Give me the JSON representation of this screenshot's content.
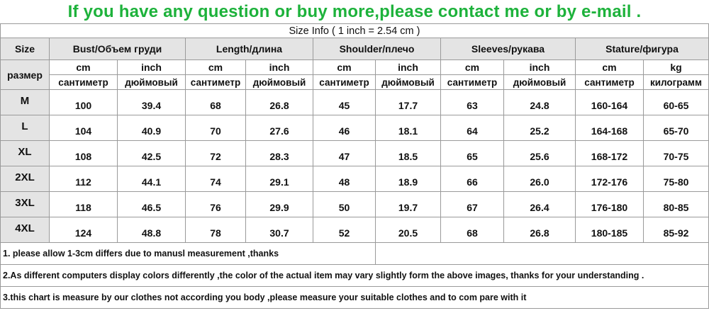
{
  "headline": "If you have any question or buy more,please contact me or by e-mail .",
  "size_info": "Size Info ( 1 inch = 2.54 cm )",
  "header": {
    "size_label": "Size",
    "size_label_ru": "размер",
    "groups": [
      {
        "label": "Bust/Объем груди",
        "unit1": "cm",
        "unit2": "inch",
        "ru1": "сантиметр",
        "ru2": "дюймовый"
      },
      {
        "label": "Length/длина",
        "unit1": "cm",
        "unit2": "inch",
        "ru1": "сантиметр",
        "ru2": "дюймовый"
      },
      {
        "label": "Shoulder/плечо",
        "unit1": "cm",
        "unit2": "inch",
        "ru1": "сантиметр",
        "ru2": "дюймовый"
      },
      {
        "label": "Sleeves/рукава",
        "unit1": "cm",
        "unit2": "inch",
        "ru1": "сантиметр",
        "ru2": "дюймовый"
      },
      {
        "label": "Stature/фигура",
        "unit1": "cm",
        "unit2": "kg",
        "ru1": "сантиметр",
        "ru2": "килограмм"
      }
    ]
  },
  "rows": [
    {
      "size": "M",
      "values": [
        "100",
        "39.4",
        "68",
        "26.8",
        "45",
        "17.7",
        "63",
        "24.8",
        "160-164",
        "60-65"
      ]
    },
    {
      "size": "L",
      "values": [
        "104",
        "40.9",
        "70",
        "27.6",
        "46",
        "18.1",
        "64",
        "25.2",
        "164-168",
        "65-70"
      ]
    },
    {
      "size": "XL",
      "values": [
        "108",
        "42.5",
        "72",
        "28.3",
        "47",
        "18.5",
        "65",
        "25.6",
        "168-172",
        "70-75"
      ]
    },
    {
      "size": "2XL",
      "values": [
        "112",
        "44.1",
        "74",
        "29.1",
        "48",
        "18.9",
        "66",
        "26.0",
        "172-176",
        "75-80"
      ]
    },
    {
      "size": "3XL",
      "values": [
        "118",
        "46.5",
        "76",
        "29.9",
        "50",
        "19.7",
        "67",
        "26.4",
        "176-180",
        "80-85"
      ]
    },
    {
      "size": "4XL",
      "values": [
        "124",
        "48.8",
        "78",
        "30.7",
        "52",
        "20.5",
        "68",
        "26.8",
        "180-185",
        "85-92"
      ]
    }
  ],
  "notes": [
    "1. please allow 1-3cm differs due to manusl measurement ,thanks",
    "2.As different computers display colors differently ,the color of the actual item may vary slightly form the above images, thanks for your understanding .",
    "3.this chart is measure by our clothes not according you body ,please measure your suitable clothes and to com pare with it"
  ]
}
